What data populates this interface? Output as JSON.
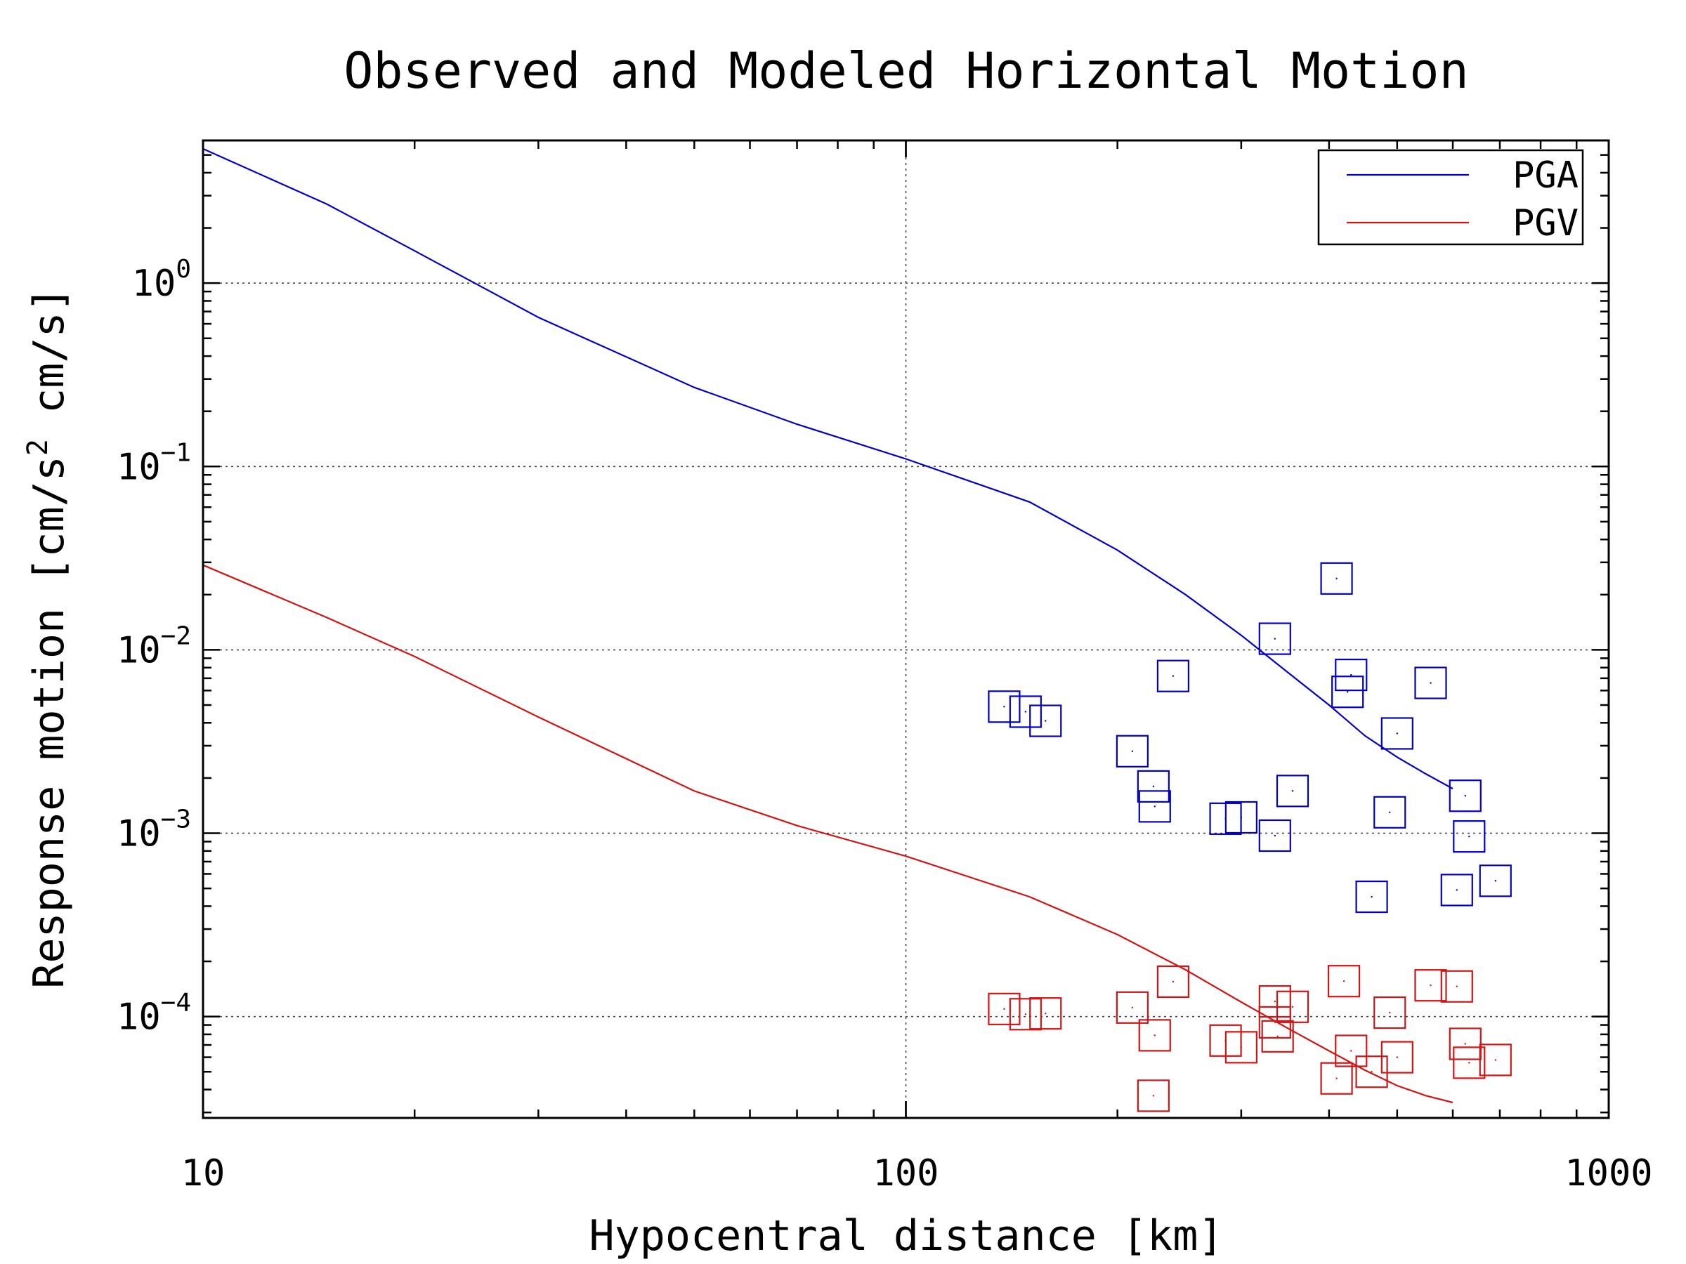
{
  "chart_data": {
    "type": "scatter",
    "title": "Observed and Modeled Horizontal Motion",
    "xlabel": "Hypocentral distance [km]",
    "ylabel": {
      "prefix": "Response motion  [cm/s",
      "sup": "2",
      "suffix": "  cm/s]"
    },
    "x_scale": "log",
    "y_scale": "log",
    "xlim": [
      10,
      1000
    ],
    "ylim": [
      2.8e-05,
      6
    ],
    "x_ticks": [
      {
        "value": 10,
        "label": "10"
      },
      {
        "value": 100,
        "label": "100"
      },
      {
        "value": 1000,
        "label": "1000"
      }
    ],
    "y_ticks": [
      {
        "value": 1,
        "base": "10",
        "exp": "0"
      },
      {
        "value": 0.1,
        "base": "10",
        "exp": "−1"
      },
      {
        "value": 0.01,
        "base": "10",
        "exp": "−2"
      },
      {
        "value": 0.001,
        "base": "10",
        "exp": "−3"
      },
      {
        "value": 0.0001,
        "base": "10",
        "exp": "−4"
      }
    ],
    "grid": true,
    "legend_position": "top-right",
    "series": [
      {
        "name": "PGA",
        "kind": "line",
        "color": "#0000c8",
        "x": [
          10,
          15,
          20,
          30,
          50,
          70,
          100,
          150,
          200,
          250,
          300,
          350,
          400,
          450,
          500,
          550,
          600
        ],
        "y": [
          5.4,
          2.7,
          1.5,
          0.65,
          0.27,
          0.17,
          0.11,
          0.064,
          0.035,
          0.02,
          0.012,
          0.0075,
          0.005,
          0.0034,
          0.0026,
          0.0021,
          0.00175
        ]
      },
      {
        "name": "PGV",
        "kind": "line",
        "color": "#d21414",
        "x": [
          10,
          15,
          20,
          30,
          50,
          70,
          100,
          150,
          200,
          250,
          300,
          350,
          400,
          450,
          500,
          550,
          600
        ],
        "y": [
          0.029,
          0.015,
          0.0092,
          0.0043,
          0.0017,
          0.0011,
          0.00075,
          0.00045,
          0.00028,
          0.00018,
          0.00012,
          8.6e-05,
          6.5e-05,
          5.1e-05,
          4.2e-05,
          3.7e-05,
          3.4e-05
        ]
      },
      {
        "name": "",
        "kind": "markers",
        "color": "#0000c8",
        "x": [
          138,
          148,
          158,
          210,
          225,
          226,
          240,
          285,
          300,
          335,
          335,
          355,
          410,
          425,
          430,
          460,
          488,
          500,
          558,
          608,
          625,
          633,
          690
        ],
        "y": [
          0.0049,
          0.0046,
          0.0041,
          0.0028,
          0.0018,
          0.0014,
          0.0072,
          0.0012,
          0.00122,
          0.0115,
          0.00097,
          0.0017,
          0.0245,
          0.0059,
          0.0073,
          0.00045,
          0.0013,
          0.0035,
          0.0066,
          0.00049,
          0.0016,
          0.00096,
          0.00055
        ]
      },
      {
        "name": "",
        "kind": "markers",
        "color": "#d21414",
        "x": [
          138,
          148,
          158,
          210,
          225,
          226,
          240,
          285,
          300,
          335,
          335,
          338,
          355,
          410,
          420,
          430,
          460,
          488,
          500,
          558,
          608,
          625,
          633,
          690
        ],
        "y": [
          0.00011,
          0.000103,
          0.000104,
          0.000112,
          3.7e-05,
          7.9e-05,
          0.000155,
          7.4e-05,
          6.8e-05,
          0.000121,
          9.3e-05,
          7.8e-05,
          0.000113,
          4.6e-05,
          0.000156,
          6.5e-05,
          5e-05,
          0.000105,
          6e-05,
          0.000148,
          0.000146,
          7.1e-05,
          5.6e-05,
          5.8e-05
        ]
      }
    ]
  }
}
